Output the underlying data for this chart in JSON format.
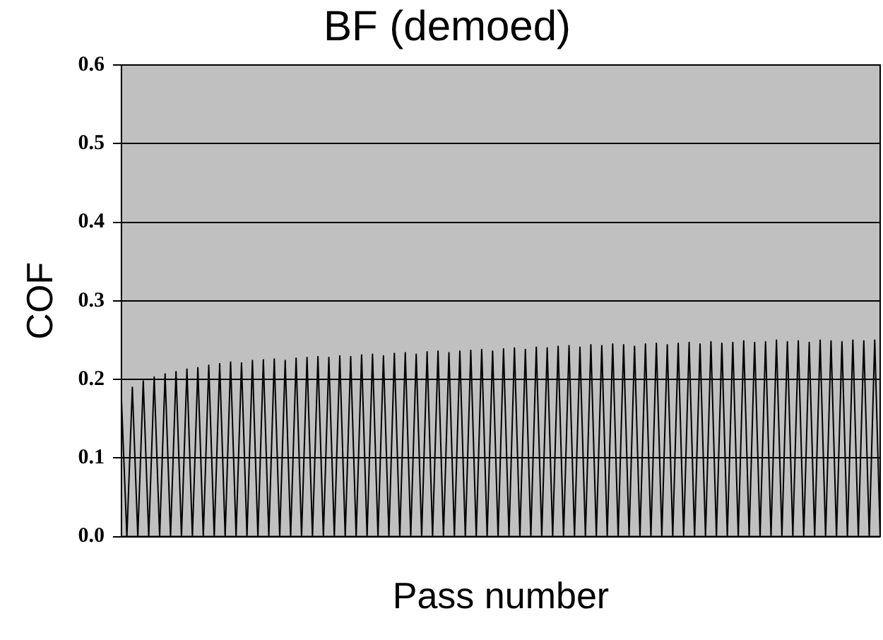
{
  "chart_data": {
    "type": "line",
    "title": "BF (demoed)",
    "xlabel": "Pass number",
    "ylabel": "COF",
    "categories": [
      null,
      null,
      null,
      null,
      null,
      null,
      null,
      null,
      null,
      null,
      null,
      null,
      null,
      null,
      null,
      null,
      null,
      null,
      null,
      null,
      null,
      null,
      null,
      null,
      null,
      null,
      null,
      null,
      null,
      null,
      null,
      null,
      null,
      null,
      null,
      null,
      null,
      null,
      null,
      null,
      null,
      null,
      null,
      null,
      null,
      null,
      null,
      null,
      null,
      null,
      null,
      null,
      null,
      null,
      null,
      null,
      null,
      null,
      null,
      null,
      null,
      null,
      null,
      null,
      null,
      null,
      null,
      null,
      null,
      null,
      null,
      null,
      null,
      null,
      null,
      null,
      null,
      null,
      null,
      null,
      null,
      null,
      null,
      null,
      null,
      null,
      null,
      null,
      null,
      null,
      null,
      null,
      null,
      null,
      null,
      null,
      null,
      null,
      null,
      null,
      null,
      null,
      null,
      null,
      null,
      null,
      null,
      null,
      null,
      null,
      null,
      null,
      null,
      null,
      null,
      null,
      null,
      null,
      null,
      null,
      null,
      null,
      null,
      null,
      null,
      null,
      null,
      null,
      null,
      null,
      null,
      null,
      null,
      null,
      null,
      null,
      null,
      null,
      null,
      null
    ],
    "series": [
      {
        "color": "#000000",
        "values": [
          0.175,
          0,
          0.19,
          0,
          0.198,
          0,
          0.203,
          0,
          0.207,
          0,
          0.21,
          0,
          0.213,
          0,
          0.215,
          0,
          0.218,
          0,
          0.22,
          0,
          0.222,
          0,
          0.221,
          0,
          0.224,
          0,
          0.225,
          0,
          0.226,
          0,
          0.224,
          0,
          0.227,
          0,
          0.228,
          0,
          0.229,
          0,
          0.228,
          0,
          0.23,
          0,
          0.229,
          0,
          0.231,
          0,
          0.232,
          0,
          0.23,
          0,
          0.233,
          0,
          0.234,
          0,
          0.232,
          0,
          0.235,
          0,
          0.236,
          0,
          0.234,
          0,
          0.236,
          0,
          0.237,
          0,
          0.238,
          0,
          0.236,
          0,
          0.239,
          0,
          0.24,
          0,
          0.238,
          0,
          0.241,
          0,
          0.24,
          0,
          0.242,
          0,
          0.243,
          0,
          0.241,
          0,
          0.244,
          0,
          0.243,
          0,
          0.245,
          0,
          0.244,
          0,
          0.242,
          0,
          0.245,
          0,
          0.246,
          0,
          0.244,
          0,
          0.246,
          0,
          0.247,
          0,
          0.245,
          0,
          0.248,
          0,
          0.246,
          0,
          0.247,
          0,
          0.249,
          0,
          0.247,
          0,
          0.248,
          0,
          0.25,
          0,
          0.248,
          0,
          0.249,
          0,
          0.247,
          0,
          0.25,
          0,
          0.249,
          0,
          0.248,
          0,
          0.25,
          0,
          0.249,
          0,
          0.25,
          0
        ]
      }
    ],
    "ylim": [
      0,
      0.6
    ],
    "yticks": [
      {
        "value": 0,
        "label": "0.0"
      },
      {
        "value": 0.1,
        "label": "0.1"
      },
      {
        "value": 0.2,
        "label": "0.2"
      },
      {
        "value": 0.3,
        "label": "0.3"
      },
      {
        "value": 0.4,
        "label": "0.4"
      },
      {
        "value": 0.5,
        "label": "0.5"
      },
      {
        "value": 0.6,
        "label": "0.6"
      }
    ],
    "grid": "y",
    "tick_labels": "y",
    "legend": false,
    "marker": "none",
    "line_style": "solid"
  }
}
